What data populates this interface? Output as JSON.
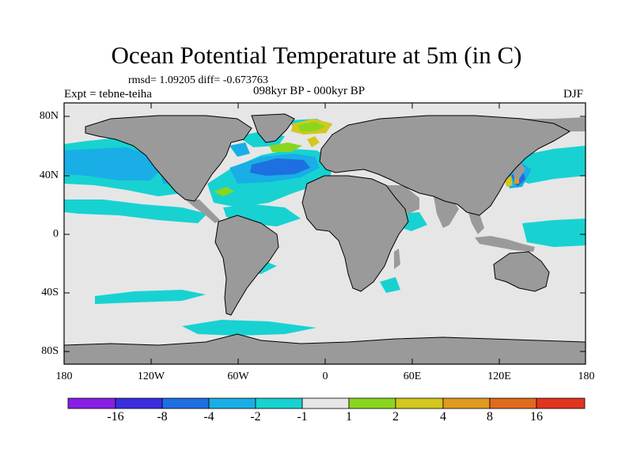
{
  "title": "Ocean Potential Temperature at 5m (in C)",
  "stats_text": "rmsd= 1.09205 diff= -0.673763",
  "experiment_label": "Expt = tebne-teiha",
  "period_label": "098kyr BP - 000kyr BP",
  "season_label": "DJF",
  "axes": {
    "lat_ticks": [
      "80N",
      "40N",
      "0",
      "40S",
      "80S"
    ],
    "lon_ticks": [
      "180",
      "120W",
      "60W",
      "0",
      "60E",
      "120E",
      "180"
    ]
  },
  "colorbar": {
    "labels": [
      "-16",
      "-8",
      "-4",
      "-2",
      "-1",
      "1",
      "2",
      "4",
      "8",
      "16"
    ],
    "colors": [
      "#8a1ee6",
      "#3a2ee0",
      "#1e6fe0",
      "#19aee6",
      "#18d2d2",
      "#e6e6e6",
      "#8ad61e",
      "#d2c81e",
      "#e09a1e",
      "#e06a1e",
      "#e0341e"
    ]
  },
  "colors": {
    "land": "#9a9a9a",
    "ocean_neutral": "#e6e6e6",
    "cool_1": "#18d2d2",
    "cool_2": "#19aee6",
    "cool_4": "#1e6fe0",
    "warm_1": "#8ad61e",
    "warm_2": "#d2c81e",
    "warm_4": "#e09a1e"
  }
}
